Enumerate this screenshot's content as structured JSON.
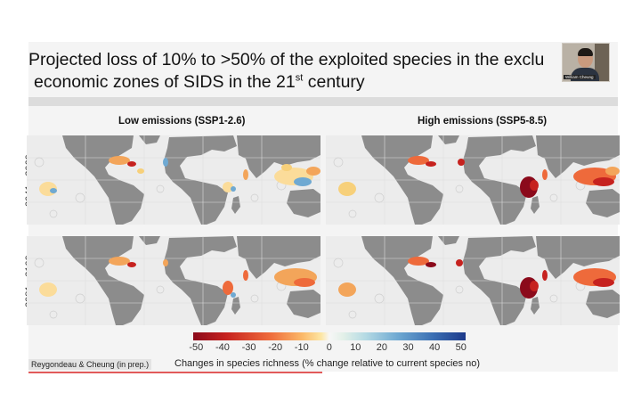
{
  "slide": {
    "title_line1": "Projected loss of 10% to >50% of the exploited species in the exclu",
    "title_line2": "economic zones of SIDS in the 21",
    "title_sup": "st",
    "title_line2_end": " century"
  },
  "columns": {
    "low": "Low emissions (SSP1-2.6)",
    "high": "High emissions (SSP5-8.5)"
  },
  "rows": {
    "r1": "2041 - 2060",
    "r2": "2081 - 2100"
  },
  "webcam": {
    "name": "William Cheung"
  },
  "legend": {
    "ticks": [
      "-50",
      "-40",
      "-30",
      "-20",
      "-10",
      "0",
      "10",
      "20",
      "30",
      "40",
      "50"
    ],
    "caption": "Changes in species richness (% change relative to current species no)",
    "source": "Reygondeau & Cheung (in prep.)"
  },
  "colors": {
    "land": "#8c8c8c",
    "ocean": "#ececec",
    "loss": "#c6221f",
    "gain": "#3b6fb3"
  }
}
